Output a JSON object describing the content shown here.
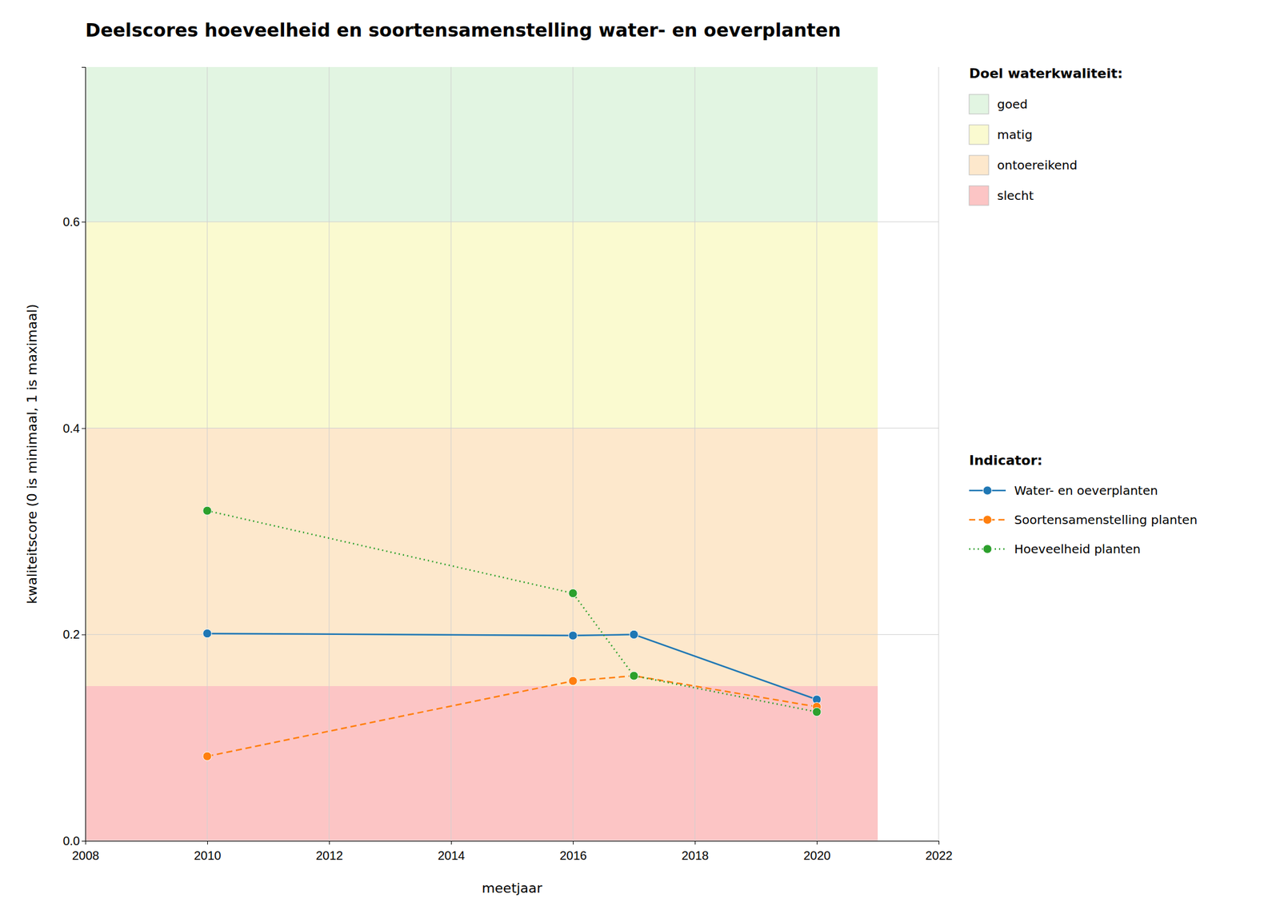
{
  "chart_data": {
    "type": "line",
    "title": "Deelscores hoeveelheid en soortensamenstelling water- en oeverplanten",
    "x_label": "meetjaar",
    "y_label": "kwaliteitscore (0 is minimaal, 1 is maximaal)",
    "x": [
      2010,
      2016,
      2017,
      2020
    ],
    "series": [
      {
        "name": "Water- en oeverplanten",
        "values": [
          0.201,
          0.199,
          0.2,
          0.137
        ],
        "line_style": "solid",
        "marker": "circle"
      },
      {
        "name": "Soortensamenstelling planten",
        "values": [
          0.082,
          0.155,
          0.16,
          0.13
        ],
        "line_style": "dashed",
        "marker": "circle"
      },
      {
        "name": "Hoeveelheid planten",
        "values": [
          0.32,
          0.24,
          0.16,
          0.125
        ],
        "line_style": "dotted",
        "marker": "circle"
      }
    ],
    "xlim": [
      2008,
      2022
    ],
    "ylim": [
      0.0,
      0.75
    ],
    "xticks": [
      2008,
      2010,
      2012,
      2014,
      2016,
      2018,
      2020,
      2022
    ],
    "yticks": [
      {
        "value": 0,
        "label": "0.0"
      },
      0.2,
      0.4,
      0.6
    ],
    "grid": true,
    "legend": "right",
    "legend_title": "Indicator:",
    "bands_title": "Doel waterkwaliteit:",
    "bands_x_end": 2021,
    "bands": [
      {
        "name": "goed",
        "ymin": 0.6,
        "ymax": 0.75,
        "color": "#e2f5e2"
      },
      {
        "name": "matig",
        "ymin": 0.4,
        "ymax": 0.6,
        "color": "#fafad0"
      },
      {
        "name": "ontoereikend",
        "ymin": 0.15,
        "ymax": 0.4,
        "color": "#fde8cc"
      },
      {
        "name": "slecht",
        "ymin": 0.0,
        "ymax": 0.15,
        "color": "#fcc5c5"
      }
    ]
  }
}
